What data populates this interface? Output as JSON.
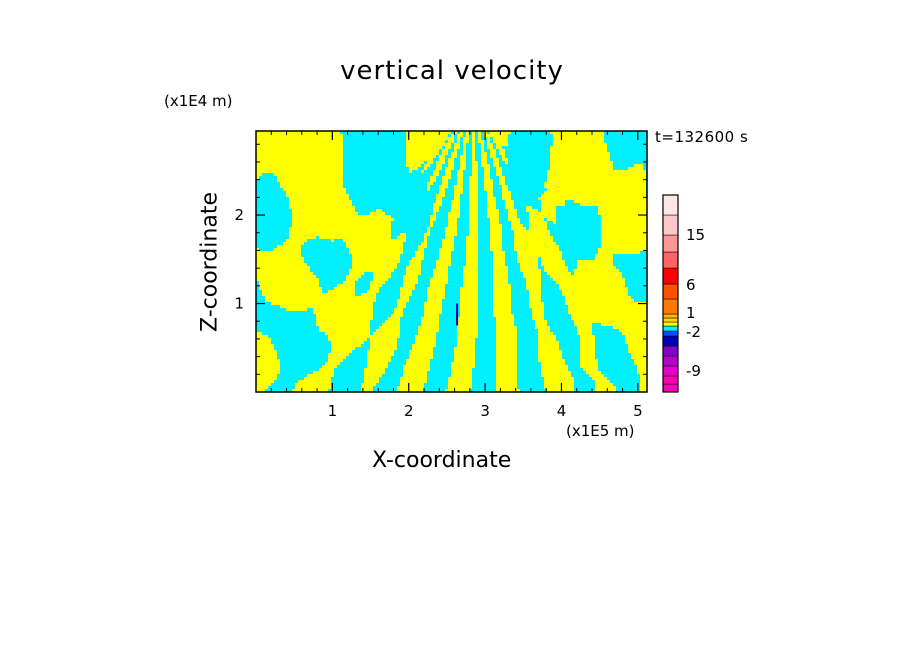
{
  "chart_data": {
    "type": "heatmap",
    "title": "vertical velocity",
    "xlabel": "X-coordinate",
    "ylabel": "Z-coordinate",
    "x_unit": "(x1E5 m)",
    "y_unit": "(x1E4 m)",
    "time_label": "t=132600 s",
    "xlim": [
      0,
      5.12
    ],
    "ylim": [
      0,
      2.95
    ],
    "x_ticks": [
      1,
      2,
      3,
      4,
      5
    ],
    "x_tick_labels": [
      "1",
      "2",
      "3",
      "4",
      "5"
    ],
    "y_ticks": [
      1,
      2
    ],
    "y_tick_labels": [
      "1",
      "2"
    ],
    "colorbar": {
      "bins": [
        {
          "color": "#ff00b4"
        },
        {
          "color": "#ff00b4"
        },
        {
          "color": "#e600c8"
        },
        {
          "color": "#b400c8"
        },
        {
          "color": "#8200c8"
        },
        {
          "color": "#0000b4"
        },
        {
          "color": "#0050ff"
        },
        {
          "color": "#00f0ff"
        },
        {
          "color": "#ffff00"
        },
        {
          "color": "#ffd800"
        },
        {
          "color": "#ffb400"
        },
        {
          "color": "#ff7800"
        },
        {
          "color": "#ff5000"
        },
        {
          "color": "#ff0000"
        },
        {
          "color": "#ff6464"
        },
        {
          "color": "#ff9696"
        },
        {
          "color": "#ffc8c8"
        },
        {
          "color": "#ffe6e6"
        }
      ],
      "labels": [
        "-9",
        "-2",
        "1",
        "6",
        "15"
      ]
    },
    "field_colors": {
      "positive": "#ffff00",
      "negative": "#00f0ff",
      "strong_negative": "#0000b4"
    }
  }
}
